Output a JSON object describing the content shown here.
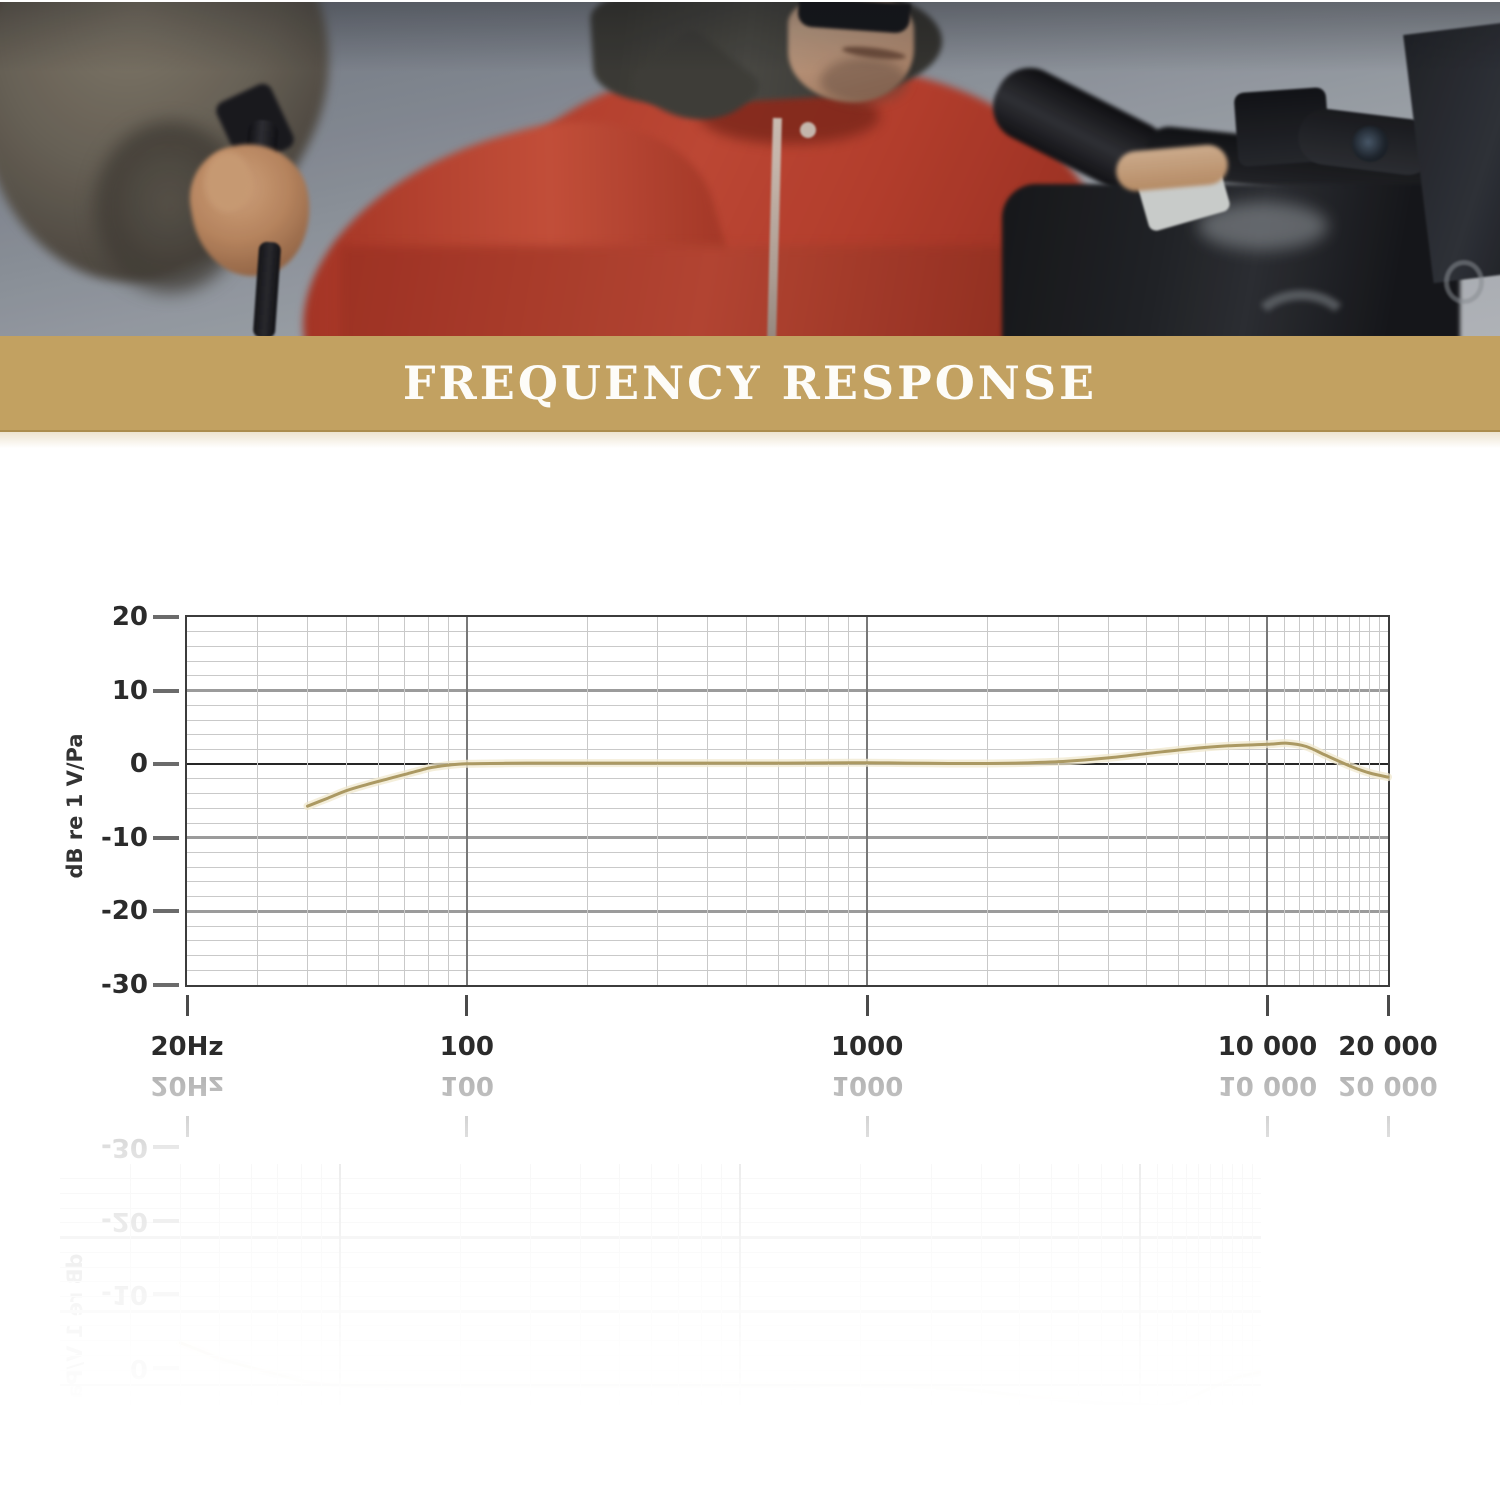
{
  "banner": {
    "title": "FREQUENCY RESPONSE"
  },
  "colors": {
    "banner_gold": "#c2a161",
    "curve": "#ab9963",
    "curve_halo": "#f0e8cd",
    "grid_minor": "#c9c9c9",
    "grid_major": "#9b9b9b",
    "zero_line": "#262626",
    "label_text": "#2b2b2b"
  },
  "chart_data": {
    "type": "line",
    "title": "FREQUENCY RESPONSE",
    "xlabel": "",
    "ylabel": "dB re 1 V/Pa",
    "x_scale": "log",
    "x_range_hz": [
      20,
      20000
    ],
    "ylim": [
      -30,
      20
    ],
    "grid": true,
    "legend": "none",
    "y_major_ticks": [
      20,
      10,
      0,
      -10,
      -20,
      -30
    ],
    "y_minor_step_db": 2,
    "x_major_gridlines_hz": [
      100,
      1000,
      10000
    ],
    "x_tick_labels": [
      {
        "hz": 20,
        "label": "20Hz"
      },
      {
        "hz": 100,
        "label": "100"
      },
      {
        "hz": 1000,
        "label": "1000"
      },
      {
        "hz": 10000,
        "label": "10 000"
      },
      {
        "hz": 20000,
        "label": "20 000"
      }
    ],
    "series": [
      {
        "name": "frequency-response",
        "color": "#ab9963",
        "points": [
          [
            40,
            -5.7
          ],
          [
            45,
            -4.6
          ],
          [
            50,
            -3.6
          ],
          [
            56,
            -2.8
          ],
          [
            63,
            -2.05
          ],
          [
            71,
            -1.3
          ],
          [
            80,
            -0.55
          ],
          [
            85,
            -0.3
          ],
          [
            90,
            -0.12
          ],
          [
            100,
            0.05
          ],
          [
            125,
            0.12
          ],
          [
            160,
            0.15
          ],
          [
            200,
            0.15
          ],
          [
            250,
            0.15
          ],
          [
            315,
            0.15
          ],
          [
            400,
            0.15
          ],
          [
            500,
            0.15
          ],
          [
            630,
            0.15
          ],
          [
            800,
            0.18
          ],
          [
            1000,
            0.2
          ],
          [
            1250,
            0.15
          ],
          [
            1600,
            0.1
          ],
          [
            2000,
            0.1
          ],
          [
            2500,
            0.18
          ],
          [
            3150,
            0.4
          ],
          [
            4000,
            0.85
          ],
          [
            5000,
            1.45
          ],
          [
            6300,
            2.05
          ],
          [
            8000,
            2.5
          ],
          [
            10000,
            2.7
          ],
          [
            11200,
            2.85
          ],
          [
            12500,
            2.4
          ],
          [
            14000,
            1.2
          ],
          [
            16000,
            -0.2
          ],
          [
            18000,
            -1.2
          ],
          [
            20000,
            -1.75
          ]
        ]
      }
    ]
  }
}
